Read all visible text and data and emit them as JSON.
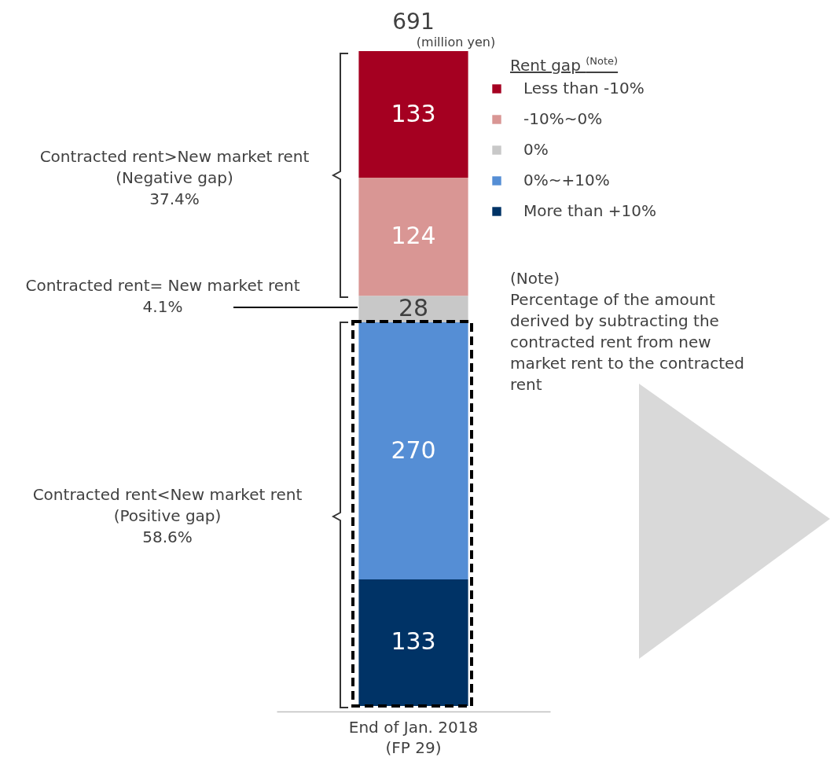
{
  "chart_data": {
    "type": "bar",
    "stacked": true,
    "data_labels": true,
    "legend": "top right",
    "legend_title": "Rent gap $^{(Note)}$",
    "categories": [
      "End of Jan. 2018\n(FP 29)"
    ],
    "series": [
      {
        "name": "More than +10%",
        "color": "#003366",
        "values": [
          133
        ]
      },
      {
        "name": "0%~+10%",
        "color": "#558ed5",
        "values": [
          270
        ]
      },
      {
        "name": "0%",
        "color": "#c8c8c8",
        "values": [
          28
        ]
      },
      {
        "name": "-10%~0%",
        "color": "#d99694",
        "values": [
          124
        ]
      },
      {
        "name": "Less than -10%",
        "color": "#a50021",
        "values": [
          133
        ]
      }
    ],
    "totals": [
      "691"
    ],
    "annotations": [
      "(million yen)",
      "Contracted rent>New market rent\n(Negative gap)\n37.4%",
      "Contracted rent= New market rent\n4.1%",
      "Contracted rent<New market rent\n(Positive gap)\n58.6%",
      "(Note)\nPercentage of the amount\nderived by subtracting the\ncontracted rent from new\nmarket rent to the contracted\nrent"
    ]
  }
}
